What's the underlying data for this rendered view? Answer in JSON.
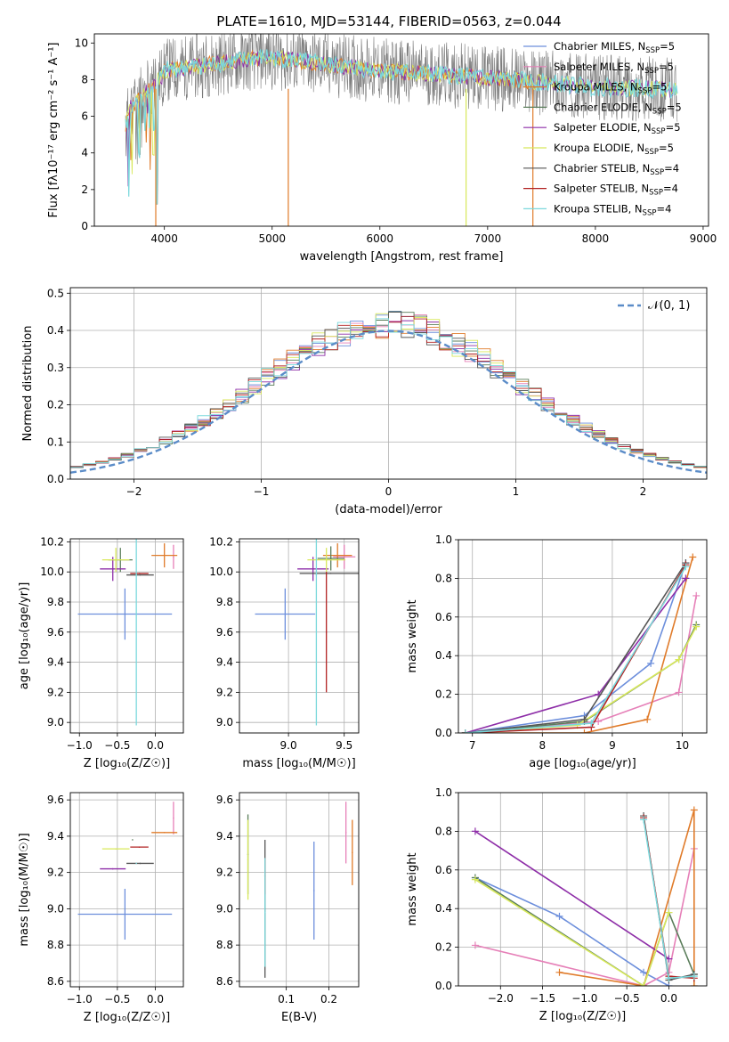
{
  "title": "PLATE=1610, MJD=53144, FIBERID=0563, z=0.044",
  "colors": [
    "#6d8fdc",
    "#e680b8",
    "#e07b2a",
    "#5a7d5a",
    "#8e2ea8",
    "#d8e85a",
    "#555555",
    "#b22222",
    "#7ad8dc"
  ],
  "chart_data": [
    {
      "id": "spectrum",
      "type": "line",
      "title": "PLATE=1610, MJD=53144, FIBERID=0563, z=0.044",
      "xlabel": "wavelength [Angstrom, rest frame]",
      "ylabel": "Flux [fλ10⁻¹⁷ erg cm⁻² s⁻¹ A⁻¹]",
      "xlim": [
        3350,
        9050
      ],
      "ylim": [
        0,
        10.5
      ],
      "xticks": [
        4000,
        5000,
        6000,
        7000,
        8000,
        9000
      ],
      "yticks": [
        0,
        2,
        4,
        6,
        8,
        10
      ],
      "grid": false,
      "legend": "top-right",
      "x_range_data": [
        3640,
        8760
      ],
      "legend_entries": [
        {
          "main": "Chabrier MILES, N",
          "sub": "SSP",
          "tail": "=5",
          "color": "#6d8fdc"
        },
        {
          "main": "Salpeter MILES, N",
          "sub": "SSP",
          "tail": "=5",
          "color": "#e680b8"
        },
        {
          "main": "Kroupa MILES, N",
          "sub": "SSP",
          "tail": "=5",
          "color": "#e07b2a"
        },
        {
          "main": "Chabrier ELODIE, N",
          "sub": "SSP",
          "tail": "=5",
          "color": "#5a7d5a"
        },
        {
          "main": "Salpeter ELODIE, N",
          "sub": "SSP",
          "tail": "=5",
          "color": "#8e2ea8"
        },
        {
          "main": "Kroupa ELODIE, N",
          "sub": "SSP",
          "tail": "=5",
          "color": "#d8e85a"
        },
        {
          "main": "Chabrier STELIB, N",
          "sub": "SSP",
          "tail": "=4",
          "color": "#555555"
        },
        {
          "main": "Salpeter STELIB, N",
          "sub": "SSP",
          "tail": "=4",
          "color": "#b22222"
        },
        {
          "main": "Kroupa STELIB, N",
          "sub": "SSP",
          "tail": "=4",
          "color": "#7ad8dc"
        }
      ]
    },
    {
      "id": "residuals",
      "type": "bar",
      "xlabel": "(data-model)/error",
      "ylabel": "Normed distribution",
      "xlim": [
        -2.5,
        2.5
      ],
      "ylim": [
        0,
        0.515
      ],
      "xticks": [
        -2,
        -1,
        0,
        1,
        2
      ],
      "yticks": [
        0.0,
        0.1,
        0.2,
        0.3,
        0.4,
        0.5
      ],
      "grid": true,
      "legend": "top-right",
      "legend_label": "𝒩(0, 1)",
      "bin_width": 0.1,
      "bin_start": -2.5
    },
    {
      "id": "age-vs-Z",
      "type": "scatter",
      "xlabel": "Z [log₁₀(Z/Z☉)]",
      "ylabel": "age  [log₁₀(age/yr)]",
      "xlim": [
        -1.12,
        0.37
      ],
      "ylim": [
        8.93,
        10.22
      ],
      "xticks": [
        -1.0,
        -0.5,
        0.0
      ],
      "yticks": [
        9.0,
        9.2,
        9.4,
        9.6,
        9.8,
        10.0,
        10.2
      ],
      "grid": true,
      "points": [
        {
          "x": -0.4,
          "xerr": 0.62,
          "y": 9.72,
          "yerr": 0.17,
          "color": "#6d8fdc"
        },
        {
          "x": 0.24,
          "xerr": 0.0,
          "y": 10.1,
          "yerr": 0.08,
          "color": "#e680b8"
        },
        {
          "x": 0.12,
          "xerr": 0.17,
          "y": 10.11,
          "yerr": 0.08,
          "color": "#e07b2a"
        },
        {
          "x": -0.46,
          "xerr": 0.16,
          "y": 10.08,
          "yerr": 0.08,
          "color": "#5a7d5a"
        },
        {
          "x": -0.56,
          "xerr": 0.17,
          "y": 10.02,
          "yerr": 0.08,
          "color": "#8e2ea8"
        },
        {
          "x": -0.52,
          "xerr": 0.18,
          "y": 10.08,
          "yerr": 0.08,
          "color": "#d8e85a"
        },
        {
          "x": -0.2,
          "xerr": 0.18,
          "y": 9.98,
          "yerr": 0.0,
          "color": "#555555"
        },
        {
          "x": -0.21,
          "xerr": 0.12,
          "y": 9.99,
          "yerr": 0.0,
          "color": "#b22222"
        },
        {
          "x": -0.25,
          "xerr": 0.0,
          "y": 9.98,
          "yerr": 1.0,
          "color": "#7ad8dc"
        }
      ]
    },
    {
      "id": "age-vs-mass",
      "type": "scatter",
      "xlabel": "mass [log₁₀(M/M☉)]",
      "ylabel": "",
      "xlim": [
        8.56,
        9.63
      ],
      "ylim": [
        8.93,
        10.22
      ],
      "xticks": [
        9.0,
        9.5
      ],
      "yticks": [
        9.0,
        9.2,
        9.4,
        9.6,
        9.8,
        10.0,
        10.2
      ],
      "grid": true,
      "points": [
        {
          "x": 8.97,
          "xerr": 0.27,
          "y": 9.72,
          "yerr": 0.17,
          "color": "#6d8fdc"
        },
        {
          "x": 9.5,
          "xerr": 0.1,
          "y": 10.1,
          "yerr": 0.08,
          "color": "#e680b8"
        },
        {
          "x": 9.44,
          "xerr": 0.13,
          "y": 10.11,
          "yerr": 0.08,
          "color": "#e07b2a"
        },
        {
          "x": 9.38,
          "xerr": 0.12,
          "y": 10.09,
          "yerr": 0.08,
          "color": "#5a7d5a"
        },
        {
          "x": 9.22,
          "xerr": 0.14,
          "y": 10.02,
          "yerr": 0.08,
          "color": "#8e2ea8"
        },
        {
          "x": 9.34,
          "xerr": 0.17,
          "y": 10.08,
          "yerr": 0.08,
          "color": "#d8e85a"
        },
        {
          "x": 9.38,
          "xerr": 0.28,
          "y": 9.99,
          "yerr": 0.0,
          "color": "#555555"
        },
        {
          "x": 9.34,
          "xerr": 0.0,
          "y": 9.6,
          "yerr": 0.4,
          "color": "#b22222"
        },
        {
          "x": 9.25,
          "xerr": 0.0,
          "y": 9.98,
          "yerr": 1.0,
          "color": "#7ad8dc"
        }
      ]
    },
    {
      "id": "weight-vs-age",
      "type": "line",
      "xlabel": "age  [log₁₀(age/yr)]",
      "ylabel": "mass weight",
      "xlim": [
        6.8,
        10.35
      ],
      "ylim": [
        0.0,
        1.0
      ],
      "xticks": [
        7,
        8,
        9,
        10
      ],
      "yticks": [
        0.0,
        0.2,
        0.4,
        0.6,
        0.8,
        1.0
      ],
      "grid": true,
      "series": [
        {
          "color": "#6d8fdc",
          "x": [
            6.9,
            8.6,
            9.55,
            10.05
          ],
          "y": [
            0.0,
            0.09,
            0.36,
            0.88
          ]
        },
        {
          "color": "#e680b8",
          "x": [
            6.9,
            8.8,
            9.95,
            10.2
          ],
          "y": [
            0.0,
            0.06,
            0.21,
            0.71
          ]
        },
        {
          "color": "#e07b2a",
          "x": [
            6.9,
            8.6,
            9.5,
            10.15
          ],
          "y": [
            0.0,
            0.0,
            0.07,
            0.91
          ]
        },
        {
          "color": "#5a7d5a",
          "x": [
            6.9,
            8.6,
            9.95,
            10.2
          ],
          "y": [
            0.0,
            0.06,
            0.38,
            0.56
          ]
        },
        {
          "color": "#8e2ea8",
          "x": [
            6.9,
            8.8,
            10.05
          ],
          "y": [
            0.0,
            0.2,
            0.8
          ]
        },
        {
          "color": "#d8e85a",
          "x": [
            6.9,
            8.5,
            9.95,
            10.2
          ],
          "y": [
            0.0,
            0.04,
            0.38,
            0.55
          ]
        },
        {
          "color": "#555555",
          "x": [
            6.9,
            8.6,
            10.05
          ],
          "y": [
            0.0,
            0.07,
            0.88
          ]
        },
        {
          "color": "#b22222",
          "x": [
            6.9,
            8.7,
            10.05
          ],
          "y": [
            0.0,
            0.03,
            0.87
          ]
        },
        {
          "color": "#7ad8dc",
          "x": [
            6.9,
            8.7,
            10.05
          ],
          "y": [
            0.0,
            0.05,
            0.86
          ]
        }
      ]
    },
    {
      "id": "mass-vs-Z",
      "type": "scatter",
      "xlabel": "Z [log₁₀(Z/Z☉)]",
      "ylabel": "mass [log₁₀(M/M☉)]",
      "xlim": [
        -1.12,
        0.37
      ],
      "ylim": [
        8.57,
        9.64
      ],
      "xticks": [
        -1.0,
        -0.5,
        0.0
      ],
      "yticks": [
        8.6,
        8.8,
        9.0,
        9.2,
        9.4,
        9.6
      ],
      "grid": true,
      "points": [
        {
          "x": -0.4,
          "xerr": 0.62,
          "y": 8.97,
          "yerr": 0.14,
          "color": "#6d8fdc"
        },
        {
          "x": 0.24,
          "xerr": 0.0,
          "y": 9.5,
          "yerr": 0.09,
          "color": "#e680b8"
        },
        {
          "x": 0.12,
          "xerr": 0.17,
          "y": 9.42,
          "yerr": 0.0,
          "color": "#e07b2a"
        },
        {
          "x": -0.3,
          "xerr": 0.0,
          "y": 9.38,
          "yerr": 0.0,
          "color": "#5a7d5a"
        },
        {
          "x": -0.56,
          "xerr": 0.17,
          "y": 9.22,
          "yerr": 0.0,
          "color": "#8e2ea8"
        },
        {
          "x": -0.52,
          "xerr": 0.18,
          "y": 9.33,
          "yerr": 0.0,
          "color": "#d8e85a"
        },
        {
          "x": -0.2,
          "xerr": 0.18,
          "y": 9.25,
          "yerr": 0.0,
          "color": "#555555"
        },
        {
          "x": -0.21,
          "xerr": 0.12,
          "y": 9.34,
          "yerr": 0.0,
          "color": "#b22222"
        },
        {
          "x": -0.25,
          "xerr": 0.0,
          "y": 9.25,
          "yerr": 0.0,
          "color": "#7ad8dc"
        }
      ]
    },
    {
      "id": "mass-vs-EBV",
      "type": "scatter",
      "xlabel": "E(B-V)",
      "ylabel": "",
      "xlim": [
        -0.01,
        0.27
      ],
      "ylim": [
        8.57,
        9.64
      ],
      "xticks": [
        0.1,
        0.2
      ],
      "yticks": [
        8.6,
        8.8,
        9.0,
        9.2,
        9.4,
        9.6
      ],
      "grid": true,
      "points": [
        {
          "x": 0.165,
          "xerr": 0.0,
          "y": 9.1,
          "yerr": 0.27,
          "color": "#6d8fdc"
        },
        {
          "x": 0.24,
          "xerr": 0.0,
          "y": 9.42,
          "yerr": 0.17,
          "color": "#e680b8"
        },
        {
          "x": 0.255,
          "xerr": 0.0,
          "y": 9.31,
          "yerr": 0.18,
          "color": "#e07b2a"
        },
        {
          "x": 0.01,
          "xerr": 0.0,
          "y": 9.3,
          "yerr": 0.22,
          "color": "#5a7d5a"
        },
        {
          "x": 0.01,
          "xerr": 0.0,
          "y": 9.27,
          "yerr": 0.22,
          "color": "#d8e85a"
        },
        {
          "x": 0.05,
          "xerr": 0.0,
          "y": 9.0,
          "yerr": 0.38,
          "color": "#555555"
        },
        {
          "x": 0.05,
          "xerr": 0.0,
          "y": 9.18,
          "yerr": 0.1,
          "color": "#b22222"
        },
        {
          "x": 0.05,
          "xerr": 0.0,
          "y": 8.98,
          "yerr": 0.3,
          "color": "#7ad8dc"
        }
      ]
    },
    {
      "id": "weight-vs-Z",
      "type": "line",
      "xlabel": "Z [log₁₀(Z/Z☉)]",
      "ylabel": "mass weight",
      "xlim": [
        -2.5,
        0.45
      ],
      "ylim": [
        0.0,
        1.0
      ],
      "xticks": [
        -2.0,
        -1.5,
        -1.0,
        -0.5,
        0.0
      ],
      "yticks": [
        0.0,
        0.2,
        0.4,
        0.6,
        0.8,
        1.0
      ],
      "grid": true,
      "series": [
        {
          "color": "#6d8fdc",
          "x": [
            -2.3,
            -1.3,
            -0.3,
            0.0
          ],
          "y": [
            0.56,
            0.36,
            0.07,
            0.0
          ]
        },
        {
          "color": "#e680b8",
          "x": [
            -2.3,
            -0.3,
            0.0,
            0.3
          ],
          "y": [
            0.21,
            0.0,
            0.07,
            0.71
          ]
        },
        {
          "color": "#e07b2a",
          "x": [
            -1.3,
            -0.3,
            0.3,
            0.3
          ],
          "y": [
            0.07,
            0.0,
            0.91,
            0.0
          ]
        },
        {
          "color": "#5a7d5a",
          "x": [
            -2.3,
            -0.3,
            0.0,
            0.3
          ],
          "y": [
            0.56,
            0.0,
            0.38,
            0.06
          ]
        },
        {
          "color": "#8e2ea8",
          "x": [
            -2.3,
            0.0
          ],
          "y": [
            0.8,
            0.14
          ]
        },
        {
          "color": "#d8e85a",
          "x": [
            -2.3,
            -0.3,
            0.0
          ],
          "y": [
            0.55,
            0.0,
            0.38
          ]
        },
        {
          "color": "#555555",
          "x": [
            -0.3,
            0.0,
            0.3
          ],
          "y": [
            0.88,
            0.03,
            0.06
          ]
        },
        {
          "color": "#b22222",
          "x": [
            -0.3,
            0.0,
            0.3
          ],
          "y": [
            0.87,
            0.05,
            0.04
          ]
        },
        {
          "color": "#7ad8dc",
          "x": [
            -0.3,
            0.0,
            0.3
          ],
          "y": [
            0.86,
            0.04,
            0.05
          ]
        }
      ]
    }
  ]
}
